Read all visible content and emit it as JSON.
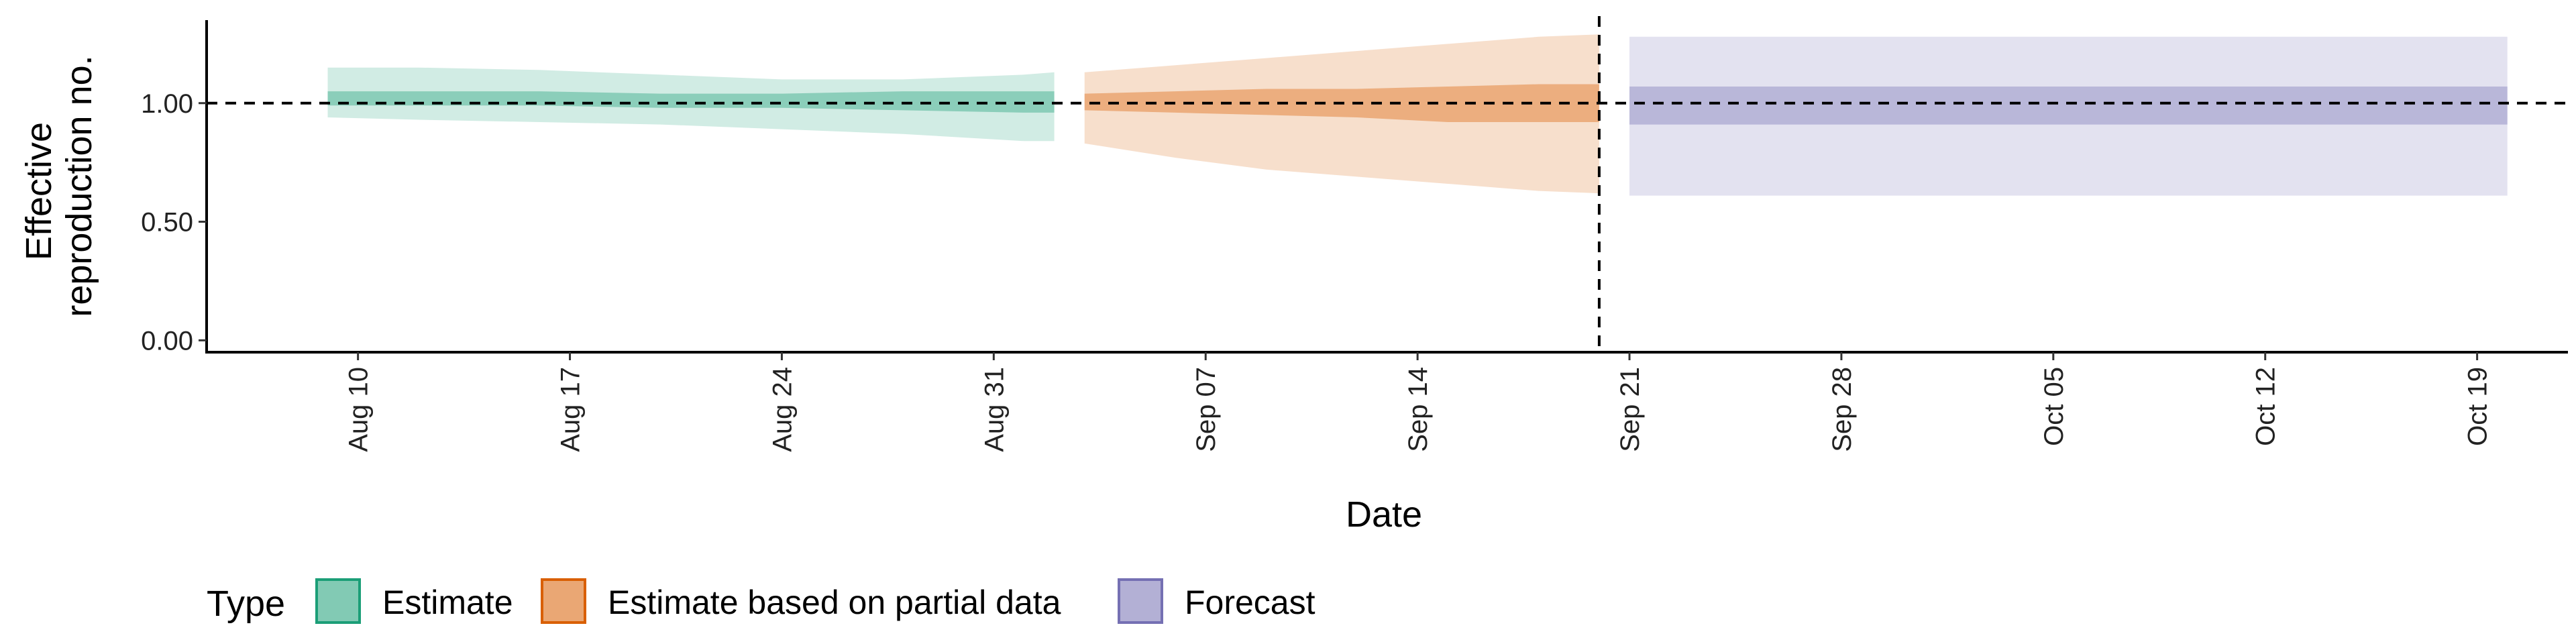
{
  "chart_data": {
    "type": "area",
    "xlabel": "Date",
    "ylabel_lines": [
      "Effective",
      "reproduction no."
    ],
    "x_range": [
      "2020-08-05",
      "2020-10-22"
    ],
    "ylim": [
      -0.05,
      1.35
    ],
    "y_ticks": [
      0.0,
      0.5,
      1.0
    ],
    "y_tick_labels": [
      "0.00",
      "0.50",
      "1.00"
    ],
    "x_ticks": [
      "2020-08-10",
      "2020-08-17",
      "2020-08-24",
      "2020-08-31",
      "2020-09-07",
      "2020-09-14",
      "2020-09-21",
      "2020-09-28",
      "2020-10-05",
      "2020-10-12",
      "2020-10-19"
    ],
    "x_tick_labels": [
      "Aug 10",
      "Aug 17",
      "Aug 24",
      "Aug 31",
      "Sep 07",
      "Sep 14",
      "Sep 21",
      "Sep 28",
      "Oct 05",
      "Oct 12",
      "Oct 19"
    ],
    "reference_line_y": 1.0,
    "forecast_start_line_x": "2020-09-20",
    "grid": false,
    "legend_placement": "bottom-left",
    "legend": {
      "title": "Type",
      "entries": [
        "Estimate",
        "Estimate based on partial data",
        "Forecast"
      ]
    },
    "series": [
      {
        "name": "Estimate",
        "color": "#1b9e77",
        "x": [
          "2020-08-09",
          "2020-08-12",
          "2020-08-16",
          "2020-08-20",
          "2020-08-24",
          "2020-08-28",
          "2020-09-01",
          "2020-09-02"
        ],
        "outer_lower": [
          0.94,
          0.93,
          0.92,
          0.91,
          0.89,
          0.87,
          0.84,
          0.84
        ],
        "outer_upper": [
          1.15,
          1.15,
          1.14,
          1.12,
          1.1,
          1.1,
          1.12,
          1.13
        ],
        "inner_lower": [
          0.99,
          0.99,
          0.99,
          0.98,
          0.98,
          0.97,
          0.96,
          0.96
        ],
        "inner_upper": [
          1.05,
          1.05,
          1.05,
          1.04,
          1.04,
          1.05,
          1.05,
          1.05
        ]
      },
      {
        "name": "Estimate based on partial data",
        "color": "#d95f02",
        "x": [
          "2020-09-03",
          "2020-09-06",
          "2020-09-09",
          "2020-09-12",
          "2020-09-15",
          "2020-09-18",
          "2020-09-20"
        ],
        "outer_lower": [
          0.83,
          0.77,
          0.72,
          0.69,
          0.66,
          0.63,
          0.62
        ],
        "outer_upper": [
          1.13,
          1.16,
          1.19,
          1.22,
          1.25,
          1.28,
          1.29
        ],
        "inner_lower": [
          0.97,
          0.96,
          0.95,
          0.94,
          0.92,
          0.92,
          0.92
        ],
        "inner_upper": [
          1.04,
          1.05,
          1.06,
          1.06,
          1.07,
          1.08,
          1.08
        ]
      },
      {
        "name": "Forecast",
        "color": "#7570b3",
        "x": [
          "2020-09-21",
          "2020-10-20"
        ],
        "outer_lower": [
          0.61,
          0.61
        ],
        "outer_upper": [
          1.28,
          1.28
        ],
        "inner_lower": [
          0.91,
          0.91
        ],
        "inner_upper": [
          1.07,
          1.07
        ]
      }
    ]
  }
}
